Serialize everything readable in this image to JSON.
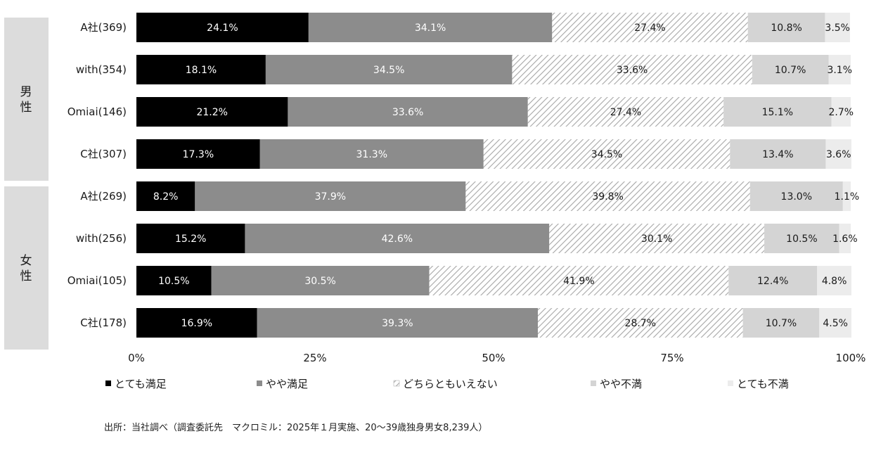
{
  "chart_data": {
    "type": "bar",
    "orientation": "horizontal",
    "stacked": "percent",
    "groups": [
      {
        "label": "男性",
        "categories": [
          "A社(369)",
          "with(354)",
          "Omiai(146)",
          "C社(307)"
        ]
      },
      {
        "label": "女性",
        "categories": [
          "A社(269)",
          "with(256)",
          "Omiai(105)",
          "C社(178)"
        ]
      }
    ],
    "categories": [
      "A社(369)",
      "with(354)",
      "Omiai(146)",
      "C社(307)",
      "A社(269)",
      "with(256)",
      "Omiai(105)",
      "C社(178)"
    ],
    "series": [
      {
        "name": "とても満足",
        "color": "#000000",
        "values": [
          24.1,
          18.1,
          21.2,
          17.3,
          8.2,
          15.2,
          10.5,
          16.9
        ],
        "labels": [
          "24.1%",
          "18.1%",
          "21.2%",
          "17.3%",
          "8.2%",
          "15.2%",
          "10.5%",
          "16.9%"
        ]
      },
      {
        "name": "やや満足",
        "color": "#8c8c8c",
        "values": [
          34.1,
          34.5,
          33.6,
          31.3,
          37.9,
          42.6,
          30.5,
          39.3
        ],
        "labels": [
          "34.1%",
          "34.5%",
          "33.6%",
          "31.3%",
          "37.9%",
          "42.6%",
          "30.5%",
          "39.3%"
        ]
      },
      {
        "name": "どちらともいえない",
        "color": "#b0b0b0",
        "pattern": "diagonal-hatch",
        "values": [
          27.4,
          33.6,
          27.4,
          34.5,
          39.8,
          30.1,
          41.9,
          28.7
        ],
        "labels": [
          "27.4%",
          "33.6%",
          "27.4%",
          "34.5%",
          "39.8%",
          "30.1%",
          "41.9%",
          "28.7%"
        ]
      },
      {
        "name": "やや不満",
        "color": "#d4d4d4",
        "values": [
          10.8,
          10.7,
          15.1,
          13.4,
          13.0,
          10.5,
          12.4,
          10.7
        ],
        "labels": [
          "10.8%",
          "10.7%",
          "15.1%",
          "13.4%",
          "13.0%",
          "10.5%",
          "12.4%",
          "10.7%"
        ]
      },
      {
        "name": "とても不満",
        "color": "#ececec",
        "values": [
          3.5,
          3.1,
          2.7,
          3.6,
          1.1,
          1.6,
          4.8,
          4.5
        ],
        "labels": [
          "3.5%",
          "3.1%",
          "2.7%",
          "3.6%",
          "1.1%",
          "1.6%",
          "4.8%",
          "4.5%"
        ]
      }
    ],
    "xlim": [
      0,
      100
    ],
    "xticks": [
      0,
      25,
      50,
      75,
      100
    ],
    "xtick_labels": [
      "0%",
      "25%",
      "50%",
      "75%",
      "100%"
    ],
    "grid": false,
    "legend_position": "bottom",
    "source": "出所：当社調べ（調査委託先　マクロミル：2025年１月実施、20～39歳独身男女8,239人）"
  }
}
